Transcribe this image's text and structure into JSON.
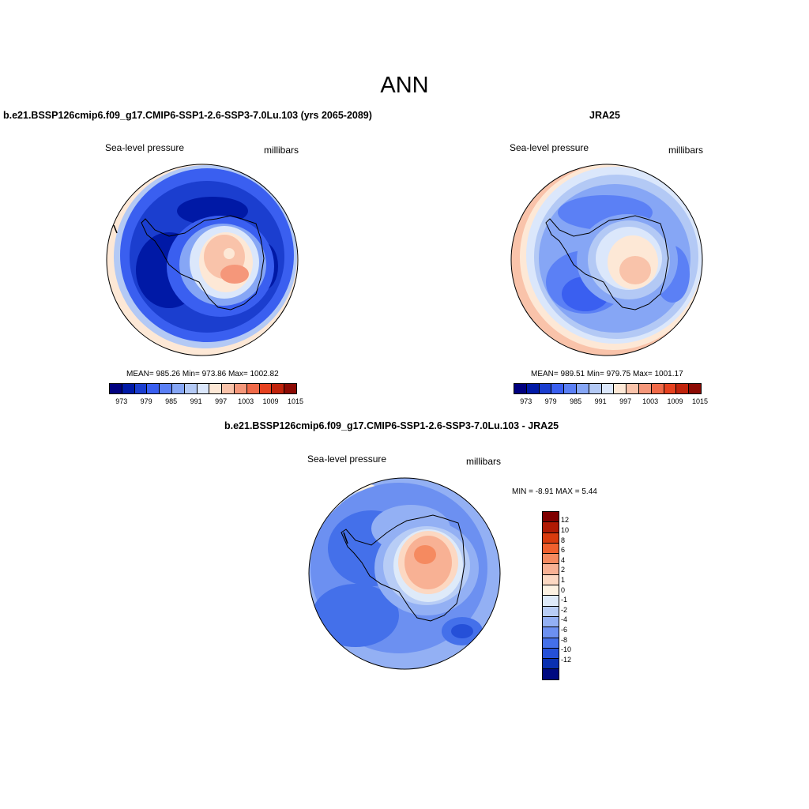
{
  "main_title": "ANN",
  "panels": [
    {
      "title": "b.e21.BSSP126cmip6.f09_g17.CMIP6-SSP1-2.6-SSP3-7.0Lu.103 (yrs 2065-2089)",
      "left_label": "Sea-level pressure",
      "right_label": "millibars",
      "stats": "MEAN= 985.26  Min= 973.86  Max= 1002.82"
    },
    {
      "title": "JRA25",
      "left_label": "Sea-level pressure",
      "right_label": "millibars",
      "stats": "MEAN= 989.51  Min= 979.75  Max= 1001.17"
    },
    {
      "title": "b.e21.BSSP126cmip6.f09_g17.CMIP6-SSP1-2.6-SSP3-7.0Lu.103 - JRA25",
      "left_label": "Sea-level pressure",
      "right_label": "millibars",
      "stats": "MIN =  -8.91 MAX =   5.44"
    }
  ],
  "abs_colorbar": {
    "colors": [
      "#00007f",
      "#0019a6",
      "#1b3ecf",
      "#3a5ff0",
      "#5b80f5",
      "#86a6f5",
      "#b3c9f5",
      "#dbe7fb",
      "#fde8d6",
      "#f9c3aa",
      "#f5977a",
      "#f06a49",
      "#e6411f",
      "#c0230c",
      "#8c0a04"
    ],
    "tick_labels": [
      "973",
      "979",
      "985",
      "991",
      "997",
      "1003",
      "1009",
      "1015"
    ]
  },
  "diff_colorbar": {
    "colors": [
      "#7f0000",
      "#b01a04",
      "#d93b0e",
      "#f0602e",
      "#f58a60",
      "#f8b194",
      "#fcd8c2",
      "#fdf2e2",
      "#deeaf9",
      "#b8cdf6",
      "#93b0f4",
      "#6c90f1",
      "#4470ea",
      "#2550d8",
      "#0a30b0",
      "#000a80"
    ],
    "tick_labels": [
      "12",
      "10",
      "8",
      "6",
      "4",
      "2",
      "1",
      "0",
      "-1",
      "-2",
      "-4",
      "-6",
      "-8",
      "-10",
      "-12"
    ]
  }
}
